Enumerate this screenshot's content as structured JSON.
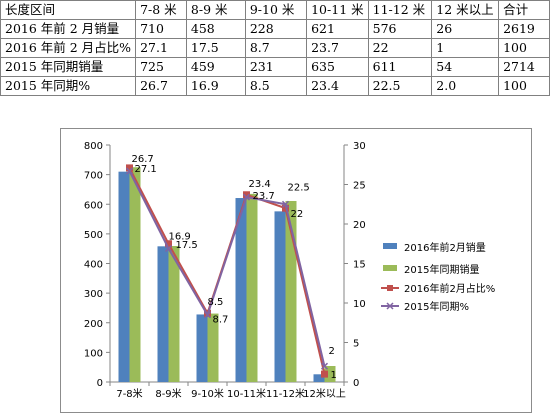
{
  "table": {
    "header": [
      "长度区间",
      "7-8 米",
      "8-9 米",
      "9-10 米",
      "10-11 米",
      "11-12 米",
      "12 米以上",
      "合计"
    ],
    "rows": [
      [
        "2016 年前 2 月销量",
        "710",
        "458",
        "228",
        "621",
        "576",
        "26",
        "2619"
      ],
      [
        "2016 年前 2 月占比%",
        "27.1",
        "17.5",
        "8.7",
        "23.7",
        "22",
        "1",
        "100"
      ],
      [
        "2015 年同期销量",
        "725",
        "459",
        "231",
        "635",
        "611",
        "54",
        "2714"
      ],
      [
        "2015 年同期%",
        "26.7",
        "16.9",
        "8.5",
        "23.4",
        "22.5",
        "2.0",
        "100"
      ]
    ]
  },
  "chart_data": {
    "type": "bar",
    "categories": [
      "7-8米",
      "8-9米",
      "9-10米",
      "10-11米",
      "11-12米",
      "12米以上"
    ],
    "series": [
      {
        "name": "2016年前2月销量",
        "type": "bar",
        "axis": "left",
        "values": [
          710,
          458,
          228,
          621,
          576,
          26
        ],
        "color": "#4f81bd"
      },
      {
        "name": "2015年同期销量",
        "type": "bar",
        "axis": "left",
        "values": [
          725,
          459,
          231,
          635,
          611,
          54
        ],
        "color": "#9bbb59"
      },
      {
        "name": "2016年前2月占比%",
        "type": "line",
        "axis": "right",
        "values": [
          27.1,
          17.5,
          8.7,
          23.7,
          22,
          1
        ],
        "color": "#c0504d",
        "marker": "square"
      },
      {
        "name": "2015年同期%",
        "type": "line",
        "axis": "right",
        "values": [
          26.7,
          16.9,
          8.5,
          23.4,
          22.5,
          2
        ],
        "color": "#8064a2",
        "marker": "x"
      }
    ],
    "point_labels": [
      {
        "series": 3,
        "index": 0,
        "text": "26.7"
      },
      {
        "series": 2,
        "index": 0,
        "text": "27.1"
      },
      {
        "series": 3,
        "index": 1,
        "text": "16.9"
      },
      {
        "series": 2,
        "index": 1,
        "text": "17.5"
      },
      {
        "series": 3,
        "index": 2,
        "text": "8.5"
      },
      {
        "series": 2,
        "index": 2,
        "text": "8.7"
      },
      {
        "series": 3,
        "index": 3,
        "text": "23.4"
      },
      {
        "series": 2,
        "index": 3,
        "text": "23.7"
      },
      {
        "series": 3,
        "index": 4,
        "text": "22.5"
      },
      {
        "series": 2,
        "index": 4,
        "text": "22"
      },
      {
        "series": 3,
        "index": 5,
        "text": "2"
      },
      {
        "series": 2,
        "index": 5,
        "text": "1"
      }
    ],
    "y_left": {
      "min": 0,
      "max": 800,
      "ticks": [
        "0",
        "100",
        "200",
        "300",
        "400",
        "500",
        "600",
        "700",
        "800"
      ]
    },
    "y_right": {
      "min": 0,
      "max": 30,
      "ticks": [
        "0",
        "5",
        "10",
        "15",
        "20",
        "25",
        "30"
      ]
    },
    "grid": false,
    "legend_position": "right"
  }
}
